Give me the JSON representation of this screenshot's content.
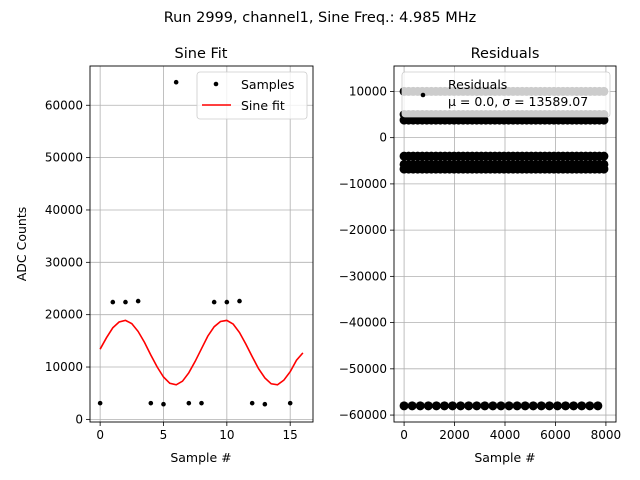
{
  "suptitle": "Run 2999, channel1, Sine Freq.: 4.985 MHz",
  "chart_data": [
    {
      "type": "scatter",
      "title": "Sine Fit",
      "xlabel": "Sample #",
      "ylabel": "ADC Counts",
      "xlim": [
        -0.8,
        16.8
      ],
      "ylim": [
        -500,
        67500
      ],
      "xticks": [
        0,
        5,
        10,
        15
      ],
      "yticks": [
        0,
        10000,
        20000,
        30000,
        40000,
        50000,
        60000
      ],
      "grid": true,
      "legend_position": "top-right",
      "legend": [
        "Samples",
        "Sine fit"
      ],
      "series": [
        {
          "name": "Samples",
          "kind": "scatter",
          "color": "#000000",
          "x": [
            0,
            1,
            2,
            3,
            4,
            5,
            6,
            7,
            8,
            9,
            10,
            11,
            12,
            13,
            14,
            15
          ],
          "y": [
            3100,
            22400,
            22400,
            22600,
            3100,
            2900,
            64400,
            3100,
            3100,
            22400,
            22400,
            22600,
            3100,
            2900,
            null,
            3100
          ]
        },
        {
          "name": "Sine fit",
          "kind": "line",
          "color": "#ff0000",
          "x": [
            0,
            0.5,
            1,
            1.5,
            2,
            2.5,
            3,
            3.5,
            4,
            4.5,
            5,
            5.5,
            6,
            6.5,
            7,
            7.5,
            8,
            8.5,
            9,
            9.5,
            10,
            10.5,
            11,
            11.5,
            12,
            12.5,
            13,
            13.5,
            14,
            14.5,
            15,
            15.5,
            16
          ],
          "y": [
            13400,
            15600,
            17500,
            18600,
            18900,
            18300,
            16800,
            14700,
            12300,
            10000,
            8100,
            6900,
            6600,
            7300,
            8900,
            11100,
            13500,
            15900,
            17700,
            18700,
            18900,
            18200,
            16600,
            14400,
            12000,
            9700,
            7900,
            6800,
            6600,
            7500,
            9100,
            11300,
            12700
          ]
        }
      ]
    },
    {
      "type": "scatter",
      "title": "Residuals",
      "xlabel": "Sample #",
      "ylabel": "",
      "xlim": [
        -400,
        8400
      ],
      "ylim": [
        -61500,
        15500
      ],
      "xticks": [
        0,
        2000,
        4000,
        6000,
        8000
      ],
      "yticks": [
        -60000,
        -50000,
        -40000,
        -30000,
        -20000,
        -10000,
        0,
        10000
      ],
      "grid": true,
      "legend_position": "top-right",
      "legend": [
        "Residuals",
        "μ = 0.0, σ = 13589.07"
      ],
      "series": [
        {
          "name": "Residuals",
          "kind": "scatter",
          "color": "#000000",
          "bands": [
            {
              "y": 10000,
              "x_start": 0,
              "x_end": 7980,
              "step": 180
            },
            {
              "y": 5000,
              "x_start": 0,
              "x_end": 7980,
              "step": 180
            },
            {
              "y": 3800,
              "x_start": 0,
              "x_end": 7980,
              "step": 180
            },
            {
              "y": -4000,
              "x_start": 0,
              "x_end": 7980,
              "step": 180
            },
            {
              "y": -5800,
              "x_start": 0,
              "x_end": 7980,
              "step": 180
            },
            {
              "y": -6800,
              "x_start": 0,
              "x_end": 7980,
              "step": 180
            },
            {
              "y": -58000,
              "x_start": 0,
              "x_end": 7980,
              "step": 320
            }
          ]
        }
      ]
    }
  ]
}
